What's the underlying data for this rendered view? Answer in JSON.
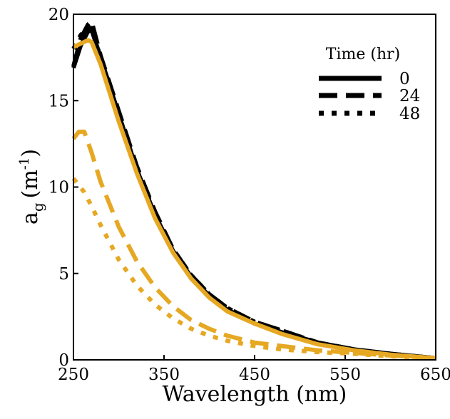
{
  "chart_data": {
    "type": "line",
    "title": "",
    "xlabel": "Wavelength (nm)",
    "ylabel": {
      "base": "a",
      "subscript": "g",
      "unit_open": "(m",
      "unit_exp": "-1",
      "unit_close": ")"
    },
    "xlim": [
      250,
      650
    ],
    "ylim": [
      0,
      20
    ],
    "x_ticks": [
      250,
      350,
      450,
      550,
      650
    ],
    "y_ticks": [
      0,
      5,
      10,
      15,
      20
    ],
    "grid": false,
    "legend": {
      "title": "Time (hr)",
      "position": "top-right",
      "entries": [
        {
          "label": "0",
          "dash": "solid"
        },
        {
          "label": "24",
          "dash": "dashed"
        },
        {
          "label": "48",
          "dash": "dotted"
        }
      ]
    },
    "colors": {
      "black": "#000000",
      "orange": "#E6A823"
    },
    "series": [
      {
        "color": "#000000",
        "dash": "solid",
        "x": [
          250,
          258,
          266,
          270,
          280,
          300,
          320,
          340,
          360,
          380,
          400,
          420,
          450,
          480,
          520,
          560,
          600,
          650
        ],
        "y": [
          16.9,
          18.2,
          19.0,
          19.1,
          17.5,
          14.2,
          11.0,
          8.4,
          6.3,
          4.8,
          3.7,
          2.9,
          2.1,
          1.6,
          1.0,
          0.6,
          0.35,
          0.1
        ]
      },
      {
        "color": "#000000",
        "dash": "dashed",
        "x": [
          250,
          258,
          266,
          270,
          280,
          300,
          320,
          340,
          360,
          380,
          400,
          420,
          450,
          480,
          520,
          560,
          600,
          650
        ],
        "y": [
          17.0,
          18.6,
          19.4,
          19.6,
          17.6,
          14.4,
          11.2,
          8.6,
          6.4,
          4.9,
          3.8,
          3.0,
          2.2,
          1.7,
          1.0,
          0.6,
          0.35,
          0.1
        ]
      },
      {
        "color": "#000000",
        "dash": "dotted",
        "x": [
          250,
          258,
          266,
          270,
          280,
          300,
          320,
          340,
          360,
          380,
          400,
          420,
          450,
          480,
          520,
          560,
          600,
          650
        ],
        "y": [
          18.0,
          18.8,
          19.2,
          19.2,
          17.5,
          14.2,
          11.0,
          8.5,
          6.4,
          4.9,
          3.8,
          3.0,
          2.2,
          1.7,
          1.0,
          0.6,
          0.35,
          0.1
        ]
      },
      {
        "color": "#E6A823",
        "dash": "solid",
        "x": [
          250,
          258,
          266,
          270,
          280,
          300,
          320,
          340,
          360,
          380,
          400,
          420,
          450,
          480,
          520,
          560,
          600,
          650
        ],
        "y": [
          18.1,
          18.3,
          18.5,
          18.4,
          17.1,
          13.8,
          10.8,
          8.2,
          6.2,
          4.7,
          3.6,
          2.8,
          2.1,
          1.5,
          0.9,
          0.55,
          0.3,
          0.1
        ]
      },
      {
        "color": "#E6A823",
        "dash": "dashed",
        "x": [
          250,
          256,
          262,
          270,
          280,
          300,
          320,
          340,
          360,
          380,
          400,
          420,
          450,
          480,
          520,
          560,
          600,
          650
        ],
        "y": [
          12.8,
          13.2,
          13.2,
          12.0,
          10.3,
          7.7,
          5.7,
          4.2,
          3.1,
          2.3,
          1.8,
          1.4,
          1.0,
          0.8,
          0.55,
          0.4,
          0.25,
          0.1
        ]
      },
      {
        "color": "#E6A823",
        "dash": "dotted",
        "x": [
          250,
          256,
          262,
          270,
          280,
          300,
          320,
          340,
          360,
          380,
          400,
          420,
          450,
          480,
          520,
          560,
          600,
          650
        ],
        "y": [
          10.5,
          10.1,
          9.7,
          8.9,
          7.8,
          5.8,
          4.3,
          3.2,
          2.4,
          1.8,
          1.4,
          1.1,
          0.8,
          0.6,
          0.45,
          0.35,
          0.2,
          0.1
        ]
      }
    ]
  }
}
